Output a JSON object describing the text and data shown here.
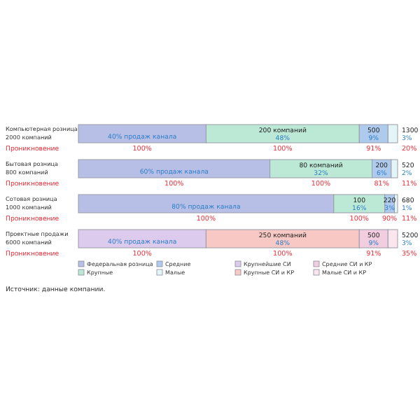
{
  "chart_data": {
    "type": "bar",
    "orientation": "horizontal",
    "stacked": true,
    "categories": [
      "Компьютерная розница\n2000 компаний",
      "Бытовая розница\n800 компаний",
      "Сотовая розница\n1000 компаний",
      "Проектные продажи\n6000 компаний"
    ],
    "xlim": [
      0,
      100
    ],
    "legend": "bottom",
    "series": [
      {
        "name": "Федеральная розница",
        "color": "#b7bfe6",
        "values": [
          40,
          60,
          80,
          null
        ],
        "value_labels": [
          "40% продаж канала",
          "60% продаж канала",
          "80% продаж канала",
          null
        ]
      },
      {
        "name": "Крупные",
        "color": "#bce8d6",
        "values": [
          48,
          32,
          16,
          null
        ],
        "value_labels": [
          "200 компаний\n48%",
          "80 компаний\n32%",
          "100\n16%",
          null
        ]
      },
      {
        "name": "Средние",
        "color": "#aecbee",
        "values": [
          9,
          6,
          3,
          null
        ],
        "value_labels": [
          "500\n9%",
          "200\n6%",
          "220\n3%",
          null
        ]
      },
      {
        "name": "Малые",
        "color": "#e4f5f8",
        "values": [
          3,
          2,
          1,
          null
        ],
        "value_labels": [
          "1300\n3%",
          "520\n2%",
          "680\n1%",
          null
        ]
      },
      {
        "name": "Крупнейшие СИ",
        "color": "#dccbec",
        "values": [
          null,
          null,
          null,
          40
        ],
        "value_labels": [
          null,
          null,
          null,
          "40% продаж канала"
        ]
      },
      {
        "name": "Крупные СИ и КР",
        "color": "#f7c8c4",
        "values": [
          null,
          null,
          null,
          48
        ],
        "value_labels": [
          null,
          null,
          null,
          "250 компаний\n48%"
        ]
      },
      {
        "name": "Средние СИ и КР",
        "color": "#f2cde0",
        "values": [
          null,
          null,
          null,
          9
        ],
        "value_labels": [
          null,
          null,
          null,
          "500\n9%"
        ]
      },
      {
        "name": "Малые СИ и КР",
        "color": "#fbe6ee",
        "values": [
          null,
          null,
          null,
          3
        ],
        "value_labels": [
          null,
          null,
          null,
          "5200\n3%"
        ]
      }
    ],
    "annotations": [
      "Проникновение",
      {
        "text": "100%",
        "x": 20,
        "y": "Компьютерная розница\n2000 компаний"
      },
      {
        "text": "100%",
        "x": 64,
        "y": "Компьютерная розница\n2000 компаний"
      },
      {
        "text": "91%",
        "x": 92.5,
        "y": "Компьютерная розница\n2000 компаний"
      },
      {
        "text": "20%",
        "x": 100,
        "y": "Компьютерная розница\n2000 компаний"
      },
      "Проникновение",
      {
        "text": "100%",
        "x": 30,
        "y": "Бытовая розница\n800 компаний"
      },
      {
        "text": "100%",
        "x": 76,
        "y": "Бытовая розница\n800 компаний"
      },
      {
        "text": "81%",
        "x": 95,
        "y": "Бытовая розница\n800 компаний"
      },
      {
        "text": "11%",
        "x": 100,
        "y": "Бытовая розница\n800 компаний"
      },
      "Проникновение",
      {
        "text": "100%",
        "x": 40,
        "y": "Сотовая розница\n1000 компаний"
      },
      {
        "text": "100%",
        "x": 88,
        "y": "Сотовая розница\n1000 компаний"
      },
      {
        "text": "90%",
        "x": 97.5,
        "y": "Сотовая розница\n1000 компаний"
      },
      {
        "text": "11%",
        "x": 100,
        "y": "Сотовая розница\n1000 компаний"
      },
      "Проникновение",
      {
        "text": "100%",
        "x": 20,
        "y": "Проектные продажи\n6000 компаний"
      },
      {
        "text": "100%",
        "x": 64,
        "y": "Проектные продажи\n6000 компаний"
      },
      {
        "text": "91%",
        "x": 92.5,
        "y": "Проектные продажи\n6000 компаний"
      },
      {
        "text": "35%",
        "x": 100,
        "y": "Проектные продажи\n6000 компаний"
      },
      "Источник: данные компании."
    ]
  }
}
